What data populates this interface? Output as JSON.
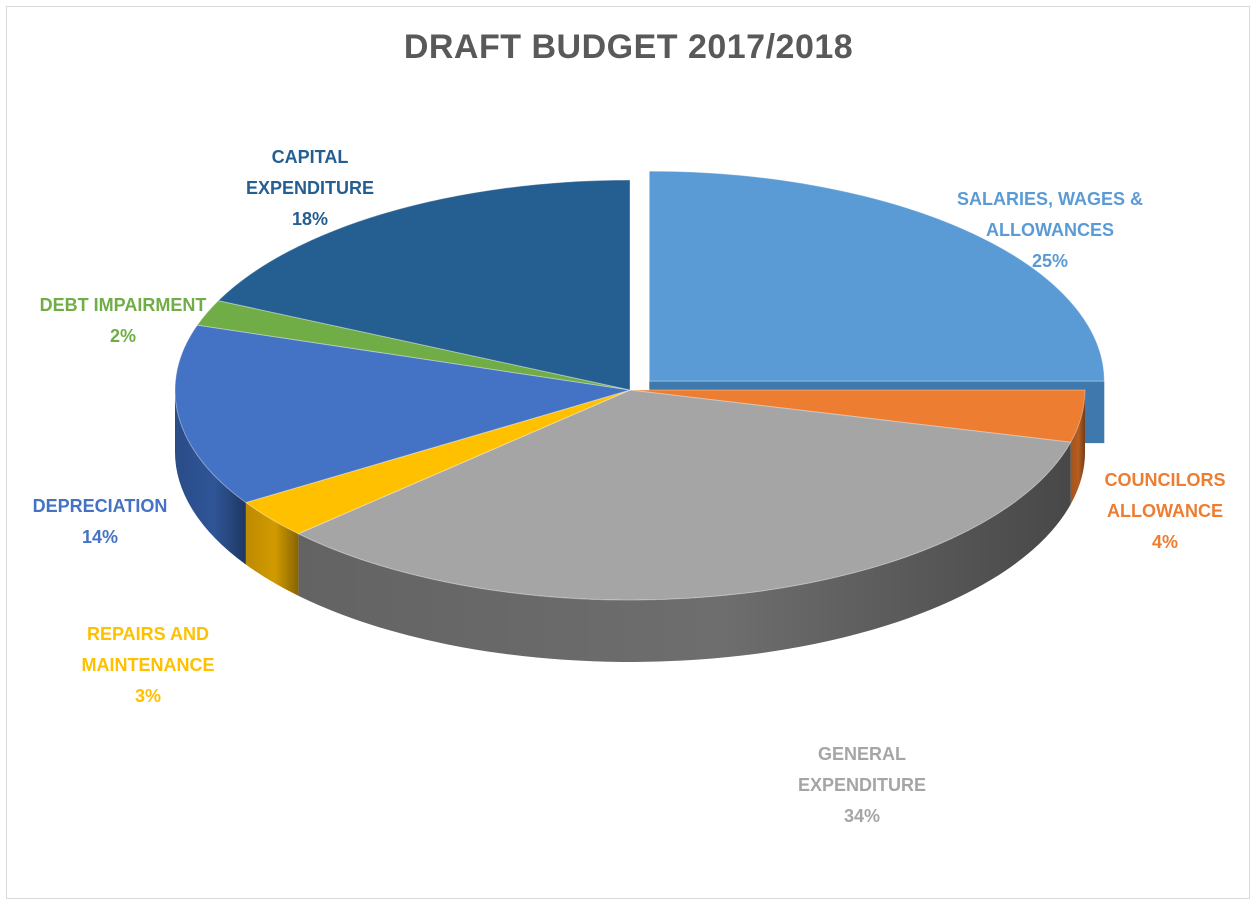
{
  "chart_data": {
    "type": "pie",
    "title": "DRAFT BUDGET 2017/2018",
    "slices": [
      {
        "label_lines": [
          "SALARIES, WAGES &",
          "ALLOWANCES"
        ],
        "pct_label": "25%",
        "value": 25,
        "color": "#5b9bd5",
        "side": "#3f78ac",
        "explode": 0.06
      },
      {
        "label_lines": [
          "COUNCILORS",
          "ALLOWANCE"
        ],
        "pct_label": "4%",
        "value": 4,
        "color": "#ed7d31",
        "side": "#b55d20",
        "explode": 0
      },
      {
        "label_lines": [
          "GENERAL",
          "EXPENDITURE"
        ],
        "pct_label": "34%",
        "value": 34,
        "color": "#a5a5a5",
        "side": "#6e6e6e",
        "explode": 0
      },
      {
        "label_lines": [
          "REPAIRS AND",
          "MAINTENANCE"
        ],
        "pct_label": "3%",
        "value": 3,
        "color": "#ffc000",
        "side": "#d19a00",
        "explode": 0
      },
      {
        "label_lines": [
          "DEPRECIATION"
        ],
        "pct_label": "14%",
        "value": 14,
        "color": "#4472c4",
        "side": "#2f5597",
        "explode": 0
      },
      {
        "label_lines": [
          "DEBT IMPAIRMENT"
        ],
        "pct_label": "2%",
        "value": 2,
        "color": "#70ad47",
        "side": "#4e7d30",
        "explode": 0
      },
      {
        "label_lines": [
          "CAPITAL",
          "EXPENDITURE"
        ],
        "pct_label": "18%",
        "value": 18,
        "color": "#255e91",
        "side": "#17406a",
        "explode": 0
      }
    ]
  }
}
